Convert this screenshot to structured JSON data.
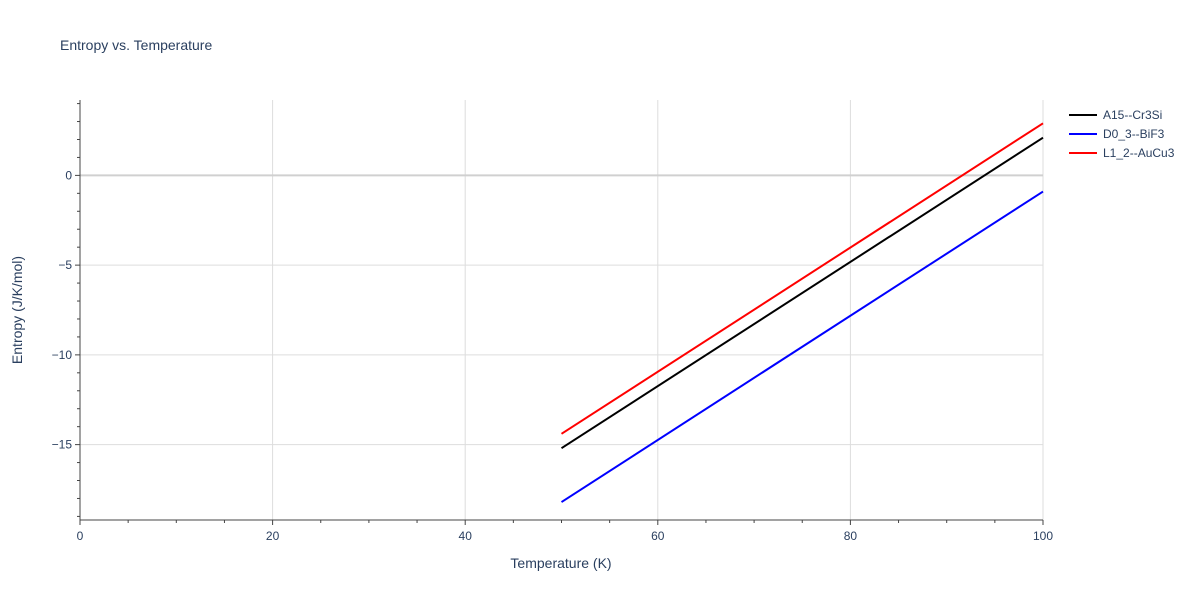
{
  "chart_data": {
    "type": "line",
    "title": "Entropy vs. Temperature",
    "xlabel": "Temperature (K)",
    "ylabel": "Entropy (J/K/mol)",
    "xlim": [
      0,
      100
    ],
    "ylim": [
      -19.2,
      4.2
    ],
    "x_ticks": [
      0,
      20,
      40,
      60,
      80,
      100
    ],
    "x_tick_labels": [
      "0",
      "20",
      "40",
      "60",
      "80",
      "100"
    ],
    "y_ticks": [
      -15,
      -10,
      -5,
      0
    ],
    "y_tick_labels": [
      "−15",
      "−10",
      "−5",
      "0"
    ],
    "grid": true,
    "legend_position": "top-right",
    "series": [
      {
        "name": "A15--Cr3Si",
        "color": "#000000",
        "x": [
          50,
          100
        ],
        "y": [
          -15.2,
          2.1
        ]
      },
      {
        "name": "D0_3--BiF3",
        "color": "#0000ff",
        "x": [
          50,
          100
        ],
        "y": [
          -18.2,
          -0.9
        ]
      },
      {
        "name": "L1_2--AuCu3",
        "color": "#ff0000",
        "x": [
          50,
          100
        ],
        "y": [
          -14.4,
          2.9
        ]
      }
    ]
  }
}
